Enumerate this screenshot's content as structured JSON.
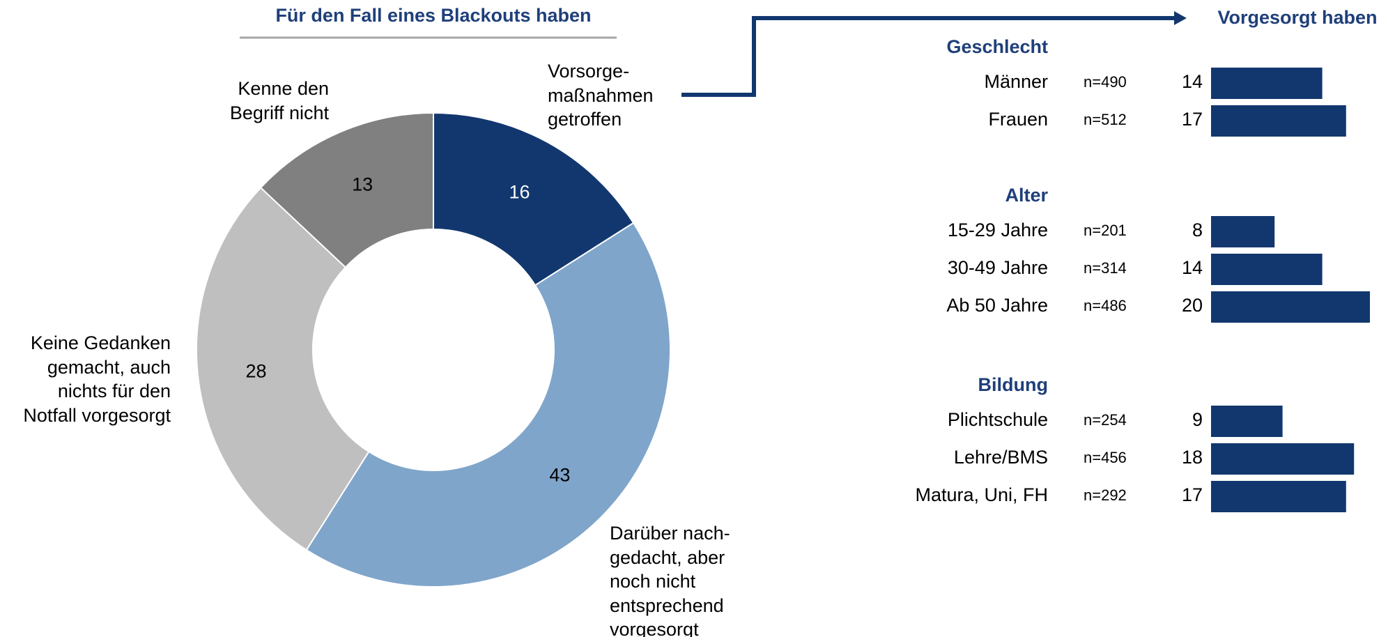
{
  "chart_data": [
    {
      "type": "pie",
      "donut": true,
      "title": "Für den Fall eines Blackouts haben",
      "categories": [
        "Vorsorge-\nmaßnahmen\ngetroffen",
        "Darüber nach-\ngedacht, aber\nnoch nicht\nentsprechend\nvorgesorgt",
        "Keine Gedanken\ngemacht, auch\nnichts für den\nNotfall vorgesorgt",
        "Kenne den\nBegriff nicht"
      ],
      "values": [
        16,
        43,
        28,
        13
      ],
      "colors": [
        "#12376f",
        "#7fa5ca",
        "#bfbfbf",
        "#808080"
      ]
    },
    {
      "type": "hbar",
      "title": "Vorgesorgt haben",
      "color": "#12376f",
      "groups": [
        {
          "name": "Geschlecht",
          "categories": [
            "Männer",
            "Frauen"
          ],
          "n": [
            "n=490",
            "n=512"
          ],
          "values": [
            14,
            17
          ]
        },
        {
          "name": "Alter",
          "categories": [
            "15-29 Jahre",
            "30-49 Jahre",
            "Ab 50 Jahre"
          ],
          "n": [
            "n=201",
            "n=314",
            "n=486"
          ],
          "values": [
            8,
            14,
            20
          ]
        },
        {
          "name": "Bildung",
          "categories": [
            "Plichtschule",
            "Lehre/BMS",
            "Matura, Uni, FH"
          ],
          "n": [
            "n=254",
            "n=456",
            "n=292"
          ],
          "values": [
            9,
            18,
            17
          ]
        }
      ]
    }
  ]
}
